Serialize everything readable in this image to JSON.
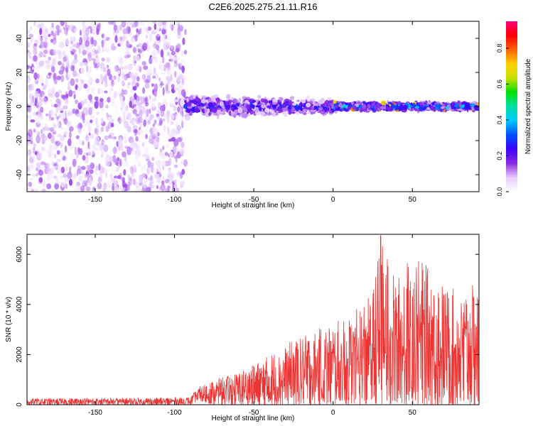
{
  "figure_title": "C2E6.2025.275.21.11.R16",
  "colors": {
    "axis": "#000000",
    "snr_line": "#ee3333",
    "background": "#ffffff"
  },
  "chart_data": [
    {
      "type": "heatmap",
      "name": "spectrogram",
      "xlabel": "Height of straight line (km)",
      "ylabel": "Frequency (Hz)",
      "xlim": [
        -193,
        92
      ],
      "ylim": [
        -50,
        50
      ],
      "xticks": [
        -150,
        -100,
        -50,
        0,
        50
      ],
      "yticks": [
        -40,
        -20,
        0,
        20,
        40
      ],
      "colorbar": {
        "label": "Normalized spectral amplitude",
        "range": [
          0.0,
          0.95
        ],
        "ticks": [
          "0.0",
          "0.2",
          "0.4",
          "0.6",
          "0.8"
        ],
        "colormap": [
          "#ffffff",
          "#e6ccff",
          "#8a2be2",
          "#3a00ff",
          "#0050ff",
          "#00c8ff",
          "#00e0a0",
          "#00e000",
          "#c8e000",
          "#ffd000",
          "#ff6000",
          "#ff0000",
          "#ff0080"
        ]
      },
      "regions": [
        {
          "x_range": [
            -193,
            -93
          ],
          "freq_range": [
            -50,
            50
          ],
          "amplitude": 0.12,
          "description_level": "noise"
        },
        {
          "x_range": [
            -93,
            0
          ],
          "center_freq": 0,
          "half_width": 8,
          "amplitude": 0.3
        },
        {
          "x_range": [
            0,
            92
          ],
          "center_freq": 0,
          "half_width": 3,
          "amplitude": 0.45,
          "peak_amplitude": 0.85
        }
      ]
    },
    {
      "type": "line",
      "name": "snr",
      "xlabel": "Height of straight line (km)",
      "ylabel": "SNR (10 * v/v)",
      "xlim": [
        -193,
        92
      ],
      "ylim": [
        0,
        6800
      ],
      "xticks": [
        -150,
        -100,
        -50,
        0,
        50
      ],
      "yticks": [
        0,
        2000,
        4000,
        6000
      ],
      "series": [
        {
          "name": "SNR",
          "color": "#ee3333",
          "envelope": {
            "x": [
              -193,
              -120,
              -90,
              -85,
              -75,
              -60,
              -50,
              -40,
              -25,
              -10,
              0,
              10,
              20,
              25,
              30,
              40,
              50,
              60,
              70,
              80,
              92
            ],
            "max": [
              250,
              280,
              300,
              700,
              1000,
              1300,
              1600,
              2000,
              2600,
              3000,
              3300,
              3500,
              4200,
              4500,
              6700,
              5000,
              6100,
              5500,
              4800,
              4500,
              4900
            ],
            "min": [
              0,
              0,
              0,
              150,
              0,
              0,
              0,
              0,
              0,
              0,
              0,
              0,
              0,
              0,
              0,
              0,
              0,
              0,
              0,
              0,
              0
            ]
          },
          "peak": {
            "x": 30,
            "y": 6750
          }
        }
      ]
    }
  ]
}
